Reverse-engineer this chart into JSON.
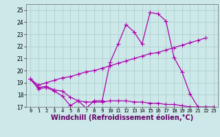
{
  "title": "",
  "xlabel": "Windchill (Refroidissement éolien,°C)",
  "xlim": [
    -0.5,
    23.5
  ],
  "ylim": [
    17,
    25.5
  ],
  "yticks": [
    17,
    18,
    19,
    20,
    21,
    22,
    23,
    24,
    25
  ],
  "xticks": [
    0,
    1,
    2,
    3,
    4,
    5,
    6,
    7,
    8,
    9,
    10,
    11,
    12,
    13,
    14,
    15,
    16,
    17,
    18,
    19,
    20,
    21,
    22,
    23
  ],
  "bg_color": "#cce8e8",
  "grid_color": "#aacccc",
  "line_color": "#aa00aa",
  "line1_x": [
    0,
    1,
    2,
    3,
    4,
    5,
    6,
    7,
    8,
    9,
    10,
    11,
    12,
    13,
    14,
    15,
    16,
    17,
    18,
    19,
    20,
    21
  ],
  "line1_y": [
    19.3,
    18.5,
    18.6,
    18.3,
    17.9,
    17.1,
    17.5,
    16.9,
    17.5,
    17.5,
    20.7,
    22.2,
    23.8,
    23.2,
    22.2,
    24.8,
    24.7,
    24.1,
    21.1,
    19.9,
    18.1,
    17.0
  ],
  "line2_x": [
    0,
    1,
    2,
    3,
    4,
    5,
    6,
    7,
    8,
    9,
    10,
    11,
    12,
    13,
    14,
    15,
    16,
    17,
    18,
    19,
    20,
    21,
    22
  ],
  "line2_y": [
    19.3,
    18.8,
    19.0,
    19.2,
    19.4,
    19.5,
    19.7,
    19.9,
    20.0,
    20.2,
    20.4,
    20.6,
    20.8,
    21.0,
    21.2,
    21.4,
    21.5,
    21.7,
    21.9,
    22.1,
    22.3,
    22.5,
    22.7
  ],
  "line3_x": [
    0,
    1,
    2,
    3,
    4,
    5,
    6,
    7,
    8,
    9,
    10,
    11,
    12,
    13,
    14,
    15,
    16,
    17,
    18,
    19,
    20,
    21,
    22,
    23
  ],
  "line3_y": [
    19.3,
    18.6,
    18.7,
    18.4,
    18.3,
    17.8,
    17.5,
    17.4,
    17.4,
    17.4,
    17.5,
    17.5,
    17.5,
    17.4,
    17.4,
    17.3,
    17.3,
    17.2,
    17.2,
    17.1,
    17.0,
    17.0,
    17.0,
    17.0
  ],
  "marker": "+",
  "markersize": 4,
  "linewidth": 0.9,
  "tick_fontsize": 5.5,
  "xlabel_fontsize": 7,
  "xtick_fontsize": 5.2
}
